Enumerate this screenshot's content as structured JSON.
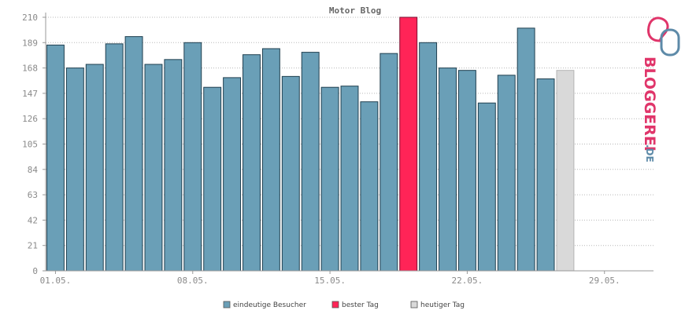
{
  "chart_data": {
    "type": "bar",
    "title": "Motor Blog",
    "y_ticks": [
      0,
      21,
      42,
      63,
      84,
      105,
      126,
      147,
      168,
      189,
      210
    ],
    "ylim": [
      0,
      210
    ],
    "x_tick_labels": [
      "01.05.",
      "08.05.",
      "15.05.",
      "22.05.",
      "29.05."
    ],
    "x_tick_days": [
      1,
      8,
      15,
      22,
      29
    ],
    "days_in_period": 31,
    "categories": [
      1,
      2,
      3,
      4,
      5,
      6,
      7,
      8,
      9,
      10,
      11,
      12,
      13,
      14,
      15,
      16,
      17,
      18,
      19,
      20,
      21,
      22,
      23,
      24,
      25,
      26,
      27
    ],
    "series": [
      {
        "name": "eindeutige Besucher",
        "color": "#6a9fb7",
        "values": [
          187,
          168,
          171,
          188,
          194,
          171,
          175,
          189,
          152,
          160,
          179,
          184,
          161,
          181,
          152,
          153,
          140,
          180,
          210,
          189,
          168,
          166,
          139,
          162,
          201,
          159,
          166
        ]
      }
    ],
    "highlight": [
      {
        "name": "bester Tag",
        "color": "#ff2457",
        "index": 18
      },
      {
        "name": "heutiger Tag",
        "color": "#d9d9d9",
        "index": 26
      }
    ],
    "grid": true,
    "legend_position": "bottom-center"
  },
  "legend": [
    {
      "label": "eindeutige Besucher",
      "color": "#6a9fb7"
    },
    {
      "label": "bester Tag",
      "color": "#ff2457"
    },
    {
      "label": "heutiger Tag",
      "color": "#d9d9d9"
    }
  ],
  "brand": {
    "text": "BLOGGEREI",
    "suffix": ".DE",
    "color": "#e0356a",
    "suffix_color": "#5d8aa8"
  }
}
